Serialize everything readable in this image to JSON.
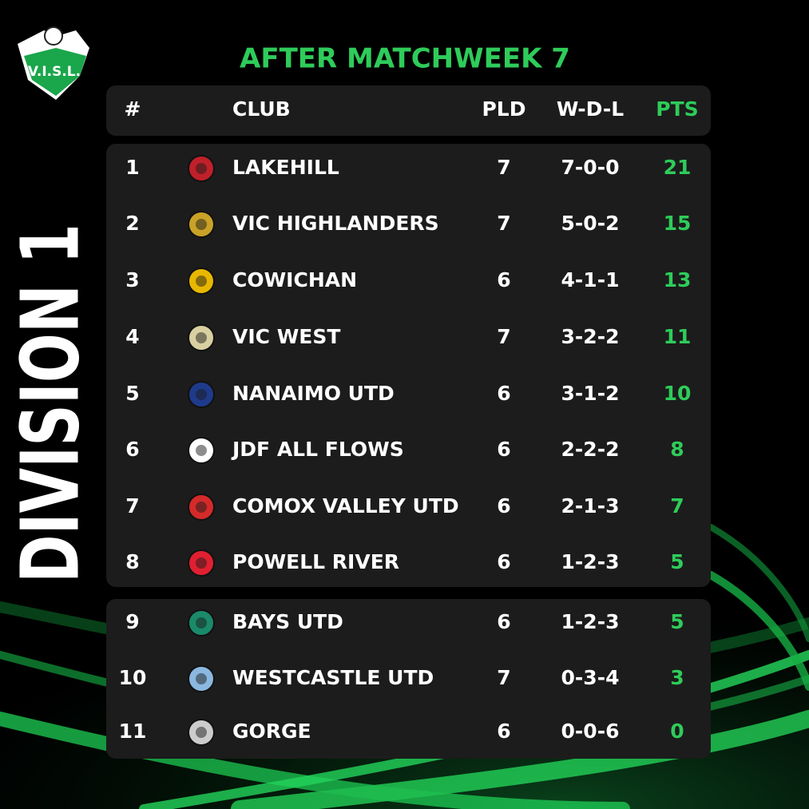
{
  "logo": "V.I.S.L.",
  "title": "AFTER MATCHWEEK 7",
  "division": "DIVISION 1",
  "table": {
    "columns": {
      "rank": "#",
      "club": "CLUB",
      "played": "PLD",
      "record": "W-D-L",
      "points": "PTS"
    },
    "rows": [
      [
        1,
        "LAKEHILL",
        7,
        "7-0-0",
        21
      ],
      [
        2,
        "VIC HIGHLANDERS",
        7,
        "5-0-2",
        15
      ],
      [
        3,
        "COWICHAN",
        6,
        "4-1-1",
        13
      ],
      [
        4,
        "VIC WEST",
        7,
        "3-2-2",
        11
      ],
      [
        5,
        "NANAIMO UTD",
        6,
        "3-1-2",
        10
      ],
      [
        6,
        "JDF ALL FLOWS",
        6,
        "2-2-2",
        8
      ],
      [
        7,
        "COMOX VALLEY UTD",
        6,
        "2-1-3",
        7
      ],
      [
        8,
        "POWELL RIVER",
        6,
        "1-2-3",
        5
      ],
      [
        9,
        "BAYS UTD",
        6,
        "1-2-3",
        5
      ],
      [
        10,
        "WESTCASTLE UTD",
        7,
        "0-3-4",
        3
      ],
      [
        11,
        "GORGE",
        6,
        "0-0-6",
        0
      ]
    ]
  }
}
